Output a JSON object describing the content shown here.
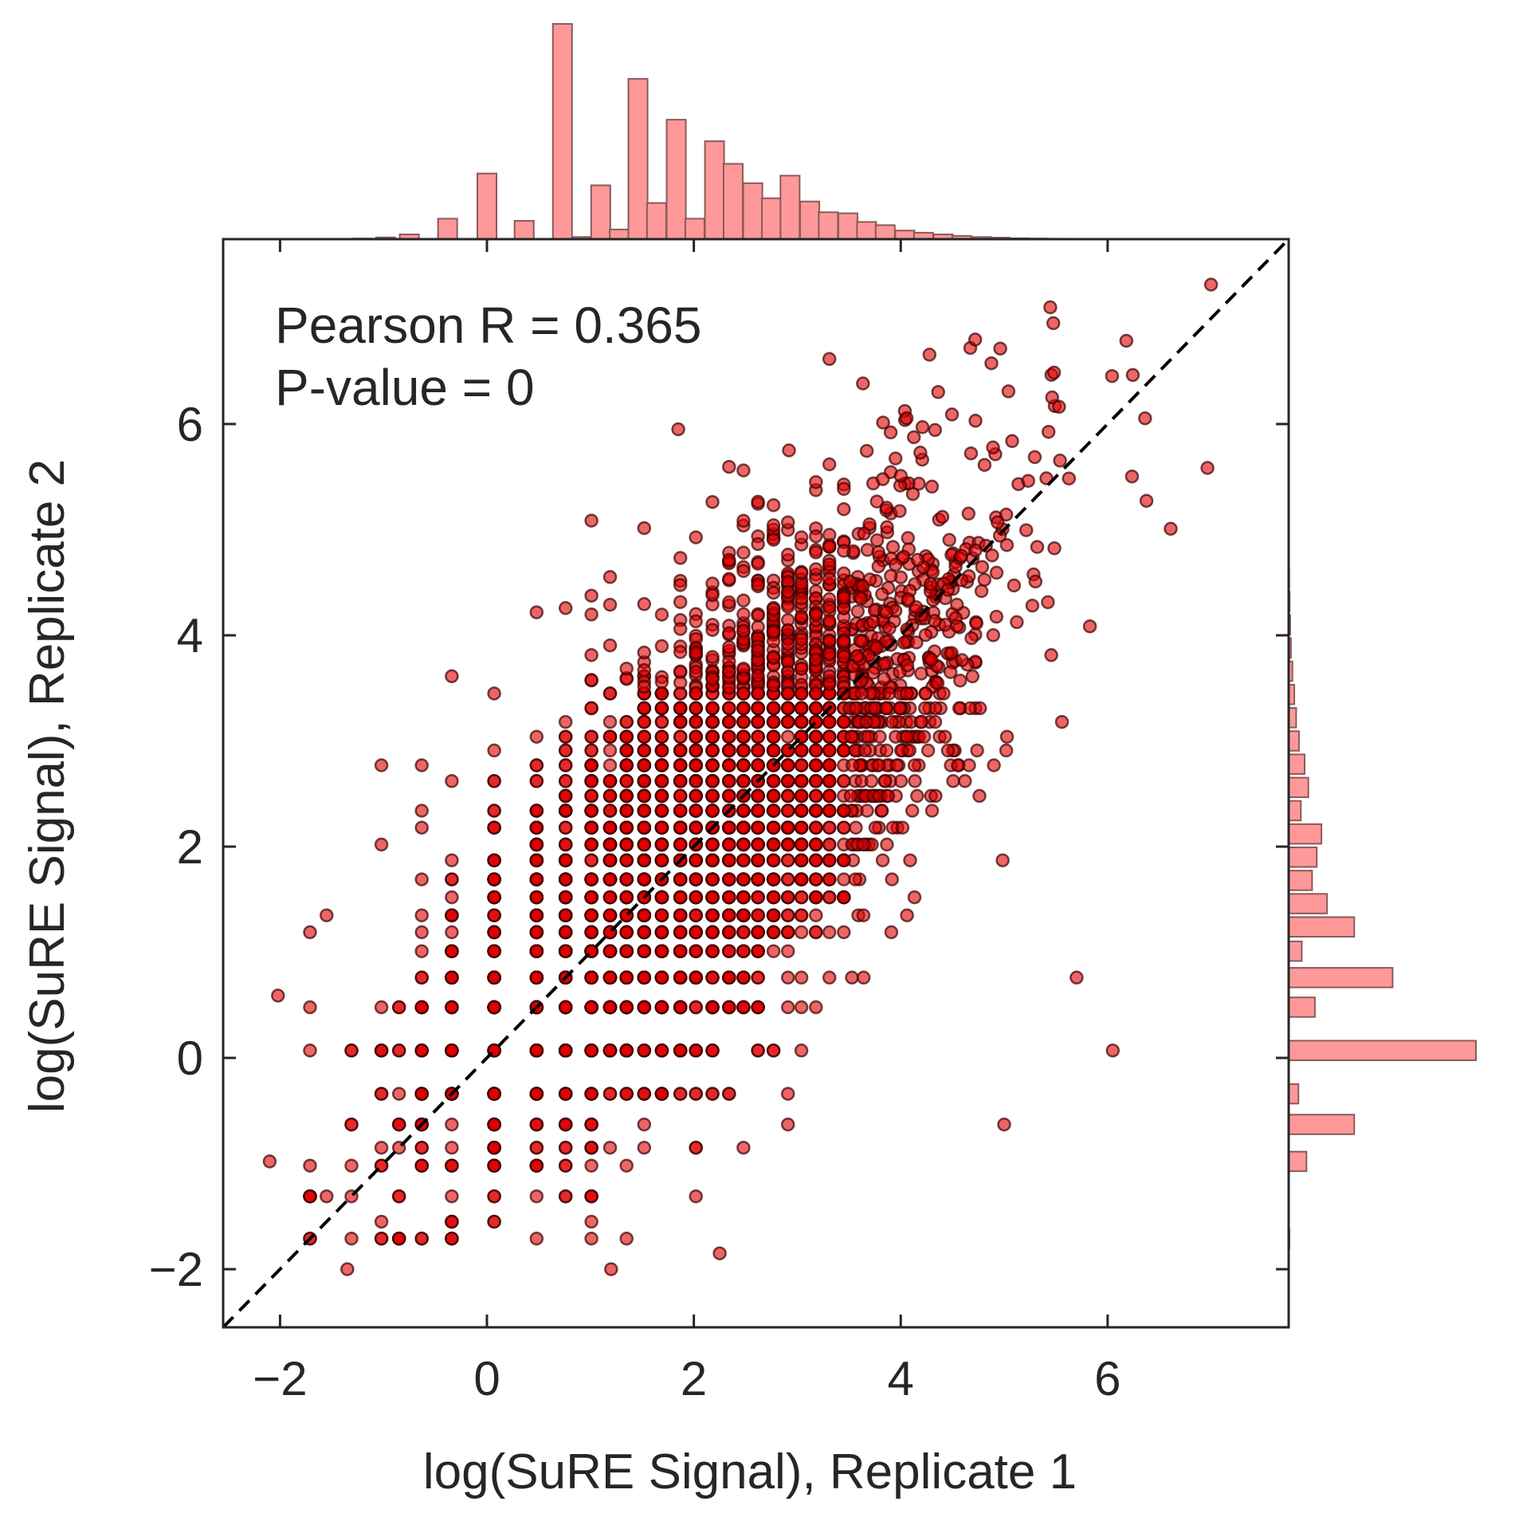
{
  "chart_data": {
    "type": "scatter",
    "subtype": "jointplot",
    "xlabel": "log(SuRE Signal), Replicate 1",
    "ylabel": "log(SuRE Signal), Replicate 2",
    "xlim": [
      -2.55,
      7.75
    ],
    "ylim": [
      -2.55,
      7.75
    ],
    "xticks": [
      -2,
      0,
      2,
      4,
      6
    ],
    "yticks": [
      -2,
      0,
      2,
      4,
      6
    ],
    "xtick_labels": [
      "−2",
      "0",
      "2",
      "4",
      "6"
    ],
    "ytick_labels": [
      "−2",
      "0",
      "2",
      "4",
      "6"
    ],
    "annotations": [
      "Pearson R = 0.365",
      "P-value = 0"
    ],
    "identity_line": {
      "style": "dashed",
      "color": "#000000",
      "from": [
        -2.55,
        -2.55
      ],
      "to": [
        7.75,
        7.75
      ]
    },
    "grid": false,
    "colors": {
      "point_fill": "#e00000",
      "point_edge": "#3a0000",
      "hist_fill": "#ff9999",
      "hist_edge": "#8a5a5a",
      "axis": "#262626"
    },
    "discrete_levels": [
      -1.71,
      -1.55,
      -1.31,
      -1.02,
      -0.85,
      -0.63,
      -0.34,
      0.07,
      0.48,
      0.76,
      1.01,
      1.19,
      1.35,
      1.52,
      1.69,
      1.87,
      2.02,
      2.18,
      2.34,
      2.48,
      2.62,
      2.77,
      2.91,
      3.04,
      3.18,
      3.31,
      3.45
    ],
    "sample_points": [
      {
        "x": -2.02,
        "y": 0.59
      },
      {
        "x": -2.1,
        "y": -0.98
      },
      {
        "x": -1.35,
        "y": -2.0
      },
      {
        "x": 1.2,
        "y": -2.0
      },
      {
        "x": 2.25,
        "y": -1.85
      },
      {
        "x": 1.85,
        "y": 5.95
      },
      {
        "x": 2.92,
        "y": 5.75
      },
      {
        "x": 4.72,
        "y": 6.8
      },
      {
        "x": 7.0,
        "y": 7.32
      },
      {
        "x": 6.05,
        "y": 0.07
      },
      {
        "x": 5.0,
        "y": -0.63
      },
      {
        "x": 5.7,
        "y": 0.76
      }
    ],
    "marginal_x_hist": {
      "bin_width": 0.185,
      "bins": [
        {
          "x": -1.2,
          "count": 3
        },
        {
          "x": -0.98,
          "count": 8
        },
        {
          "x": -0.75,
          "count": 22
        },
        {
          "x": -0.38,
          "count": 95
        },
        {
          "x": 0.0,
          "count": 305
        },
        {
          "x": 0.36,
          "count": 85
        },
        {
          "x": 0.73,
          "count": 1000
        },
        {
          "x": 0.92,
          "count": 10
        },
        {
          "x": 1.1,
          "count": 250
        },
        {
          "x": 1.28,
          "count": 45
        },
        {
          "x": 1.46,
          "count": 745
        },
        {
          "x": 1.64,
          "count": 168
        },
        {
          "x": 1.83,
          "count": 555
        },
        {
          "x": 2.01,
          "count": 95
        },
        {
          "x": 2.2,
          "count": 455
        },
        {
          "x": 2.38,
          "count": 350
        },
        {
          "x": 2.57,
          "count": 260
        },
        {
          "x": 2.75,
          "count": 190
        },
        {
          "x": 2.93,
          "count": 295
        },
        {
          "x": 3.12,
          "count": 175
        },
        {
          "x": 3.3,
          "count": 125
        },
        {
          "x": 3.49,
          "count": 120
        },
        {
          "x": 3.67,
          "count": 80
        },
        {
          "x": 3.85,
          "count": 65
        },
        {
          "x": 4.04,
          "count": 40
        },
        {
          "x": 4.22,
          "count": 30
        },
        {
          "x": 4.41,
          "count": 22
        },
        {
          "x": 4.59,
          "count": 15
        },
        {
          "x": 4.78,
          "count": 10
        },
        {
          "x": 4.96,
          "count": 7
        },
        {
          "x": 5.15,
          "count": 4
        },
        {
          "x": 5.33,
          "count": 3
        },
        {
          "x": 5.52,
          "count": 2
        },
        {
          "x": 5.7,
          "count": 1
        },
        {
          "x": 5.9,
          "count": 1
        }
      ]
    },
    "marginal_y_hist": {
      "bin_width": 0.185,
      "bins": [
        {
          "y": -1.71,
          "count": 4
        },
        {
          "y": -0.98,
          "count": 95
        },
        {
          "y": -0.63,
          "count": 350
        },
        {
          "y": -0.34,
          "count": 52
        },
        {
          "y": 0.07,
          "count": 1000
        },
        {
          "y": 0.48,
          "count": 140
        },
        {
          "y": 0.76,
          "count": 555
        },
        {
          "y": 1.01,
          "count": 70
        },
        {
          "y": 1.24,
          "count": 350
        },
        {
          "y": 1.46,
          "count": 205
        },
        {
          "y": 1.68,
          "count": 125
        },
        {
          "y": 1.9,
          "count": 150
        },
        {
          "y": 2.12,
          "count": 175
        },
        {
          "y": 2.34,
          "count": 65
        },
        {
          "y": 2.56,
          "count": 105
        },
        {
          "y": 2.78,
          "count": 85
        },
        {
          "y": 3.0,
          "count": 55
        },
        {
          "y": 3.22,
          "count": 40
        },
        {
          "y": 3.44,
          "count": 30
        },
        {
          "y": 3.66,
          "count": 20
        },
        {
          "y": 3.88,
          "count": 12
        },
        {
          "y": 4.1,
          "count": 8
        },
        {
          "y": 4.32,
          "count": 5
        },
        {
          "y": 4.54,
          "count": 3
        },
        {
          "y": 4.76,
          "count": 2
        },
        {
          "y": 4.98,
          "count": 1
        }
      ]
    }
  }
}
